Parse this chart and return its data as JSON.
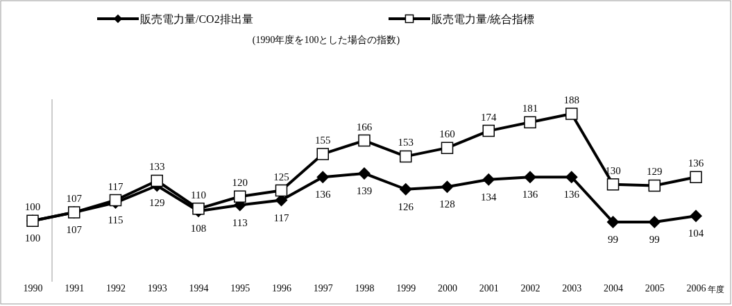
{
  "chart_data": {
    "type": "line",
    "subtitle": "(1990年度を100とした場合の指数)",
    "xlabel": "年度",
    "categories": [
      "1990",
      "1991",
      "1992",
      "1993",
      "1994",
      "1995",
      "1996",
      "1997",
      "1998",
      "1999",
      "2000",
      "2001",
      "2002",
      "2003",
      "2004",
      "2005",
      "2006"
    ],
    "series": [
      {
        "name": "販売電力量/CO2排出量",
        "color": "#000000",
        "marker": "diamond",
        "values": [
          100,
          107,
          115,
          129,
          108,
          113,
          117,
          136,
          139,
          126,
          128,
          134,
          136,
          136,
          99,
          99,
          104
        ]
      },
      {
        "name": "販売電力量/統合指標",
        "color": "#000000",
        "marker": "square",
        "values": [
          100,
          107,
          117,
          133,
          110,
          120,
          125,
          155,
          166,
          153,
          160,
          174,
          181,
          188,
          130,
          129,
          136
        ]
      }
    ],
    "ylim": [
      50,
      200
    ],
    "tick_labels": "x",
    "data_labels": true,
    "legend": "top",
    "line_style": "solid",
    "grid": false
  }
}
